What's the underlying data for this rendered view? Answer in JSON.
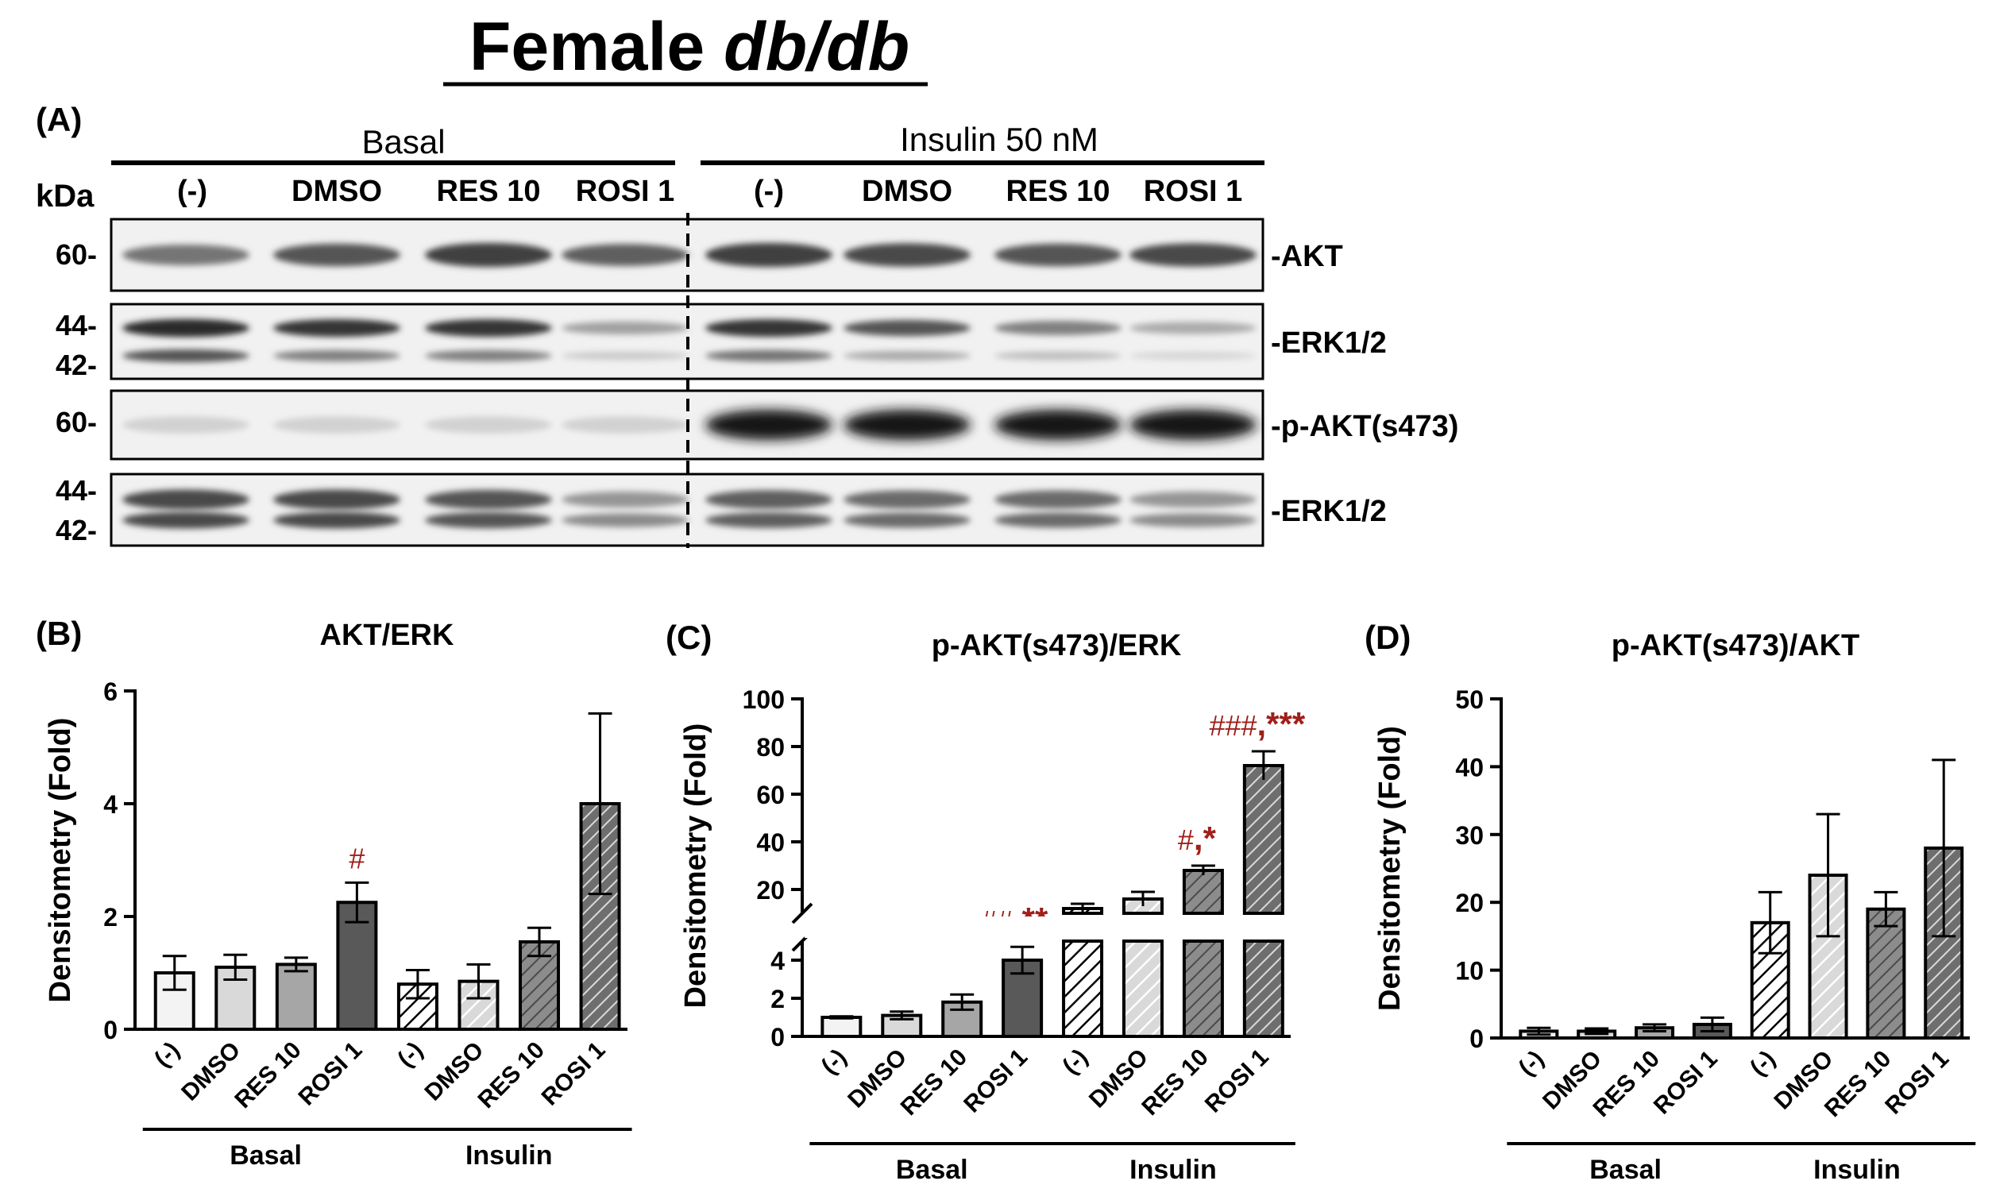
{
  "figure": {
    "title_main": "Female ",
    "title_italic": "db/db",
    "panel_a_label": "(A)",
    "group_basal": "Basal",
    "group_insulin": "Insulin 50 nM",
    "kda_label": "kDa",
    "lanes": [
      "(-)",
      "DMSO",
      "RES 10",
      "ROSI 1",
      "(-)",
      "DMSO",
      "RES 10",
      "ROSI 1"
    ],
    "blots": [
      {
        "label": "-AKT",
        "kda": [
          "60-"
        ]
      },
      {
        "label": "-ERK1/2",
        "kda": [
          "44-",
          "42-"
        ]
      },
      {
        "label": "-p-AKT(s473)",
        "kda": [
          "60-"
        ]
      },
      {
        "label": "-ERK1/2",
        "kda": [
          "44-",
          "42-"
        ]
      }
    ]
  },
  "colors": {
    "accent_red": "#a01f1a",
    "bar_fills": [
      "#f3f3f3",
      "#d9d9d9",
      "#a6a6a6",
      "#595959"
    ],
    "hatch_fills": [
      "#ffffff",
      "#d9d9d9",
      "#8c8c8c",
      "#6e6e6e"
    ]
  },
  "chart_data": [
    {
      "panel": "(B)",
      "type": "bar",
      "title": "AKT/ERK",
      "ylabel": "Densitometry (Fold)",
      "ylim": [
        0,
        6
      ],
      "yticks": [
        0,
        2,
        4,
        6
      ],
      "categories": [
        "(-)",
        "DMSO",
        "RES 10",
        "ROSI 1",
        "(-)",
        "DMSO",
        "RES 10",
        "ROSI 1"
      ],
      "groups": [
        "Basal",
        "Insulin"
      ],
      "values": [
        1.0,
        1.1,
        1.15,
        2.25,
        0.8,
        0.85,
        1.55,
        4.0
      ],
      "errors": [
        0.3,
        0.22,
        0.12,
        0.35,
        0.25,
        0.3,
        0.25,
        1.6
      ],
      "annotations": [
        "",
        "",
        "",
        "#",
        "",
        "",
        "",
        ""
      ]
    },
    {
      "panel": "(C)",
      "type": "bar",
      "title": "p-AKT(s473)/ERK",
      "ylabel": "Densitometry (Fold)",
      "broken_axis": true,
      "lower_ylim": [
        0,
        5
      ],
      "lower_yticks": [
        0,
        2,
        4
      ],
      "upper_ylim": [
        10,
        100
      ],
      "upper_yticks": [
        20,
        40,
        60,
        80,
        100
      ],
      "categories": [
        "(-)",
        "DMSO",
        "RES 10",
        "ROSI 1",
        "(-)",
        "DMSO",
        "RES 10",
        "ROSI 1"
      ],
      "groups": [
        "Basal",
        "Insulin"
      ],
      "values": [
        1.0,
        1.1,
        1.8,
        4.0,
        12,
        16,
        28,
        72
      ],
      "errors": [
        0.05,
        0.2,
        0.4,
        0.7,
        2,
        3,
        2,
        6
      ],
      "annotations": [
        "",
        "",
        "",
        "##,**",
        "",
        "",
        "#,*",
        "###,***"
      ]
    },
    {
      "panel": "(D)",
      "type": "bar",
      "title": "p-AKT(s473)/AKT",
      "ylabel": "Densitometry (Fold)",
      "ylim": [
        0,
        50
      ],
      "yticks": [
        0,
        10,
        20,
        30,
        40,
        50
      ],
      "categories": [
        "(-)",
        "DMSO",
        "RES 10",
        "ROSI 1",
        "(-)",
        "DMSO",
        "RES 10",
        "ROSI 1"
      ],
      "groups": [
        "Basal",
        "Insulin"
      ],
      "values": [
        1.0,
        1.0,
        1.5,
        2.0,
        17,
        24,
        19,
        28
      ],
      "errors": [
        0.5,
        0.4,
        0.5,
        1.0,
        4.5,
        9,
        2.5,
        13
      ],
      "annotations": [
        "",
        "",
        "",
        "",
        "",
        "",
        "",
        ""
      ]
    }
  ]
}
